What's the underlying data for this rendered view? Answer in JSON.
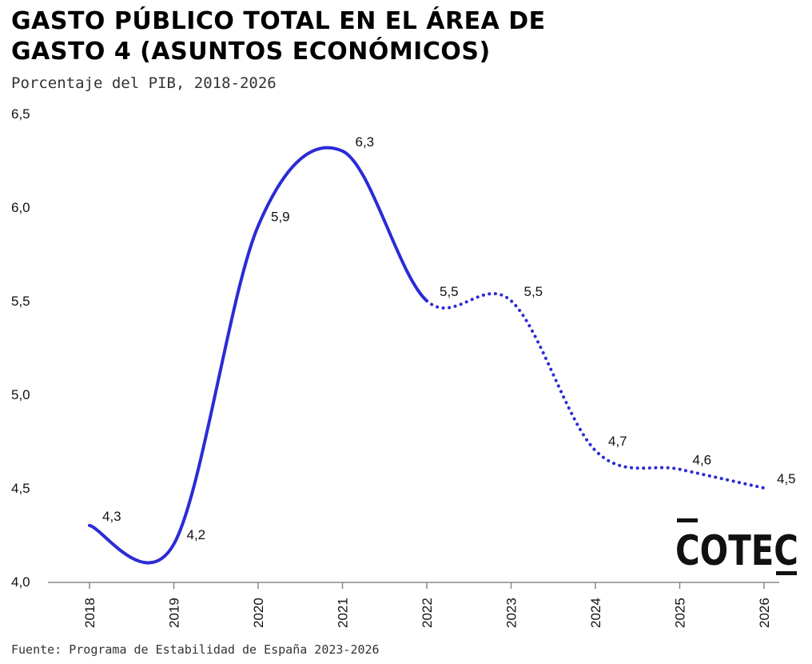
{
  "header": {
    "title_line1": "GASTO PÚBLICO TOTAL EN EL ÁREA DE",
    "title_line2": "GASTO 4 (ASUNTOS ECONÓMICOS)",
    "subtitle": "Porcentaje del PIB, 2018-2026"
  },
  "footer": {
    "source": "Fuente: Programa de Estabilidad de España 2023-2026"
  },
  "logo": {
    "text": "COTEC"
  },
  "colors": {
    "line": "#2b2bd6",
    "axis": "#888888",
    "text": "#111111"
  },
  "chart_data": {
    "type": "line",
    "categories": [
      "2018",
      "2019",
      "2020",
      "2021",
      "2022",
      "2023",
      "2024",
      "2025",
      "2026"
    ],
    "x": [
      2018,
      2019,
      2020,
      2021,
      2022,
      2023,
      2024,
      2025,
      2026
    ],
    "series": [
      {
        "values": [
          4.3,
          4.2,
          5.9,
          6.3,
          5.5,
          5.5,
          4.7,
          4.6,
          4.5
        ],
        "labels": [
          "4,3",
          "4,2",
          "5,9",
          "6,3",
          "5,5",
          "5,5",
          "4,7",
          "4,6",
          "4,5"
        ],
        "style_solid_until": "2022",
        "style_after": "dotted"
      }
    ],
    "yticks": [
      4.0,
      4.5,
      5.0,
      5.5,
      6.0,
      6.5
    ],
    "ytick_labels": [
      "4,0",
      "4,5",
      "5,0",
      "5,5",
      "6,0",
      "6,5"
    ],
    "ylim": [
      4.0,
      6.5
    ],
    "xlabel": "",
    "ylabel": "",
    "grid": false,
    "legend": "none"
  }
}
